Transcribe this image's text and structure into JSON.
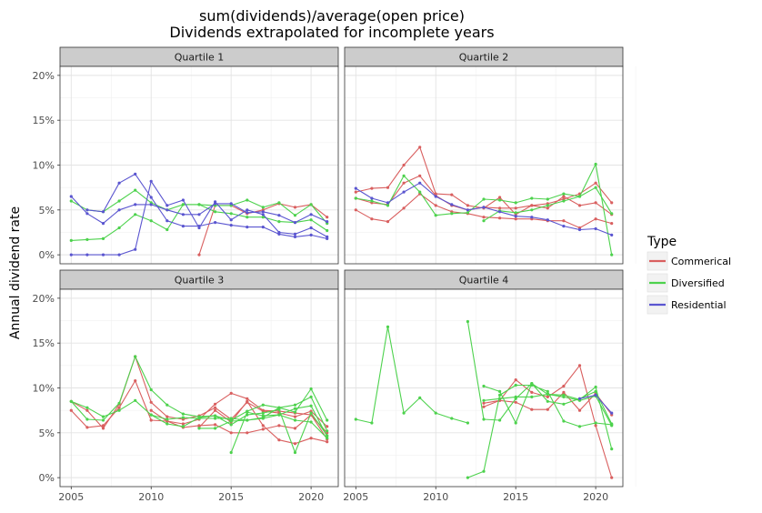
{
  "chart_data": {
    "type": "line",
    "title_lines": [
      "sum(dividends)/average(open price)",
      "Dividends extrapolated for incomplete years"
    ],
    "ylabel": "Annual dividend rate",
    "xlabel": "",
    "x_ticks": [
      2005,
      2010,
      2015,
      2020
    ],
    "y_ticks": [
      "0%",
      "5%",
      "10%",
      "15%",
      "20%"
    ],
    "y_tick_values": [
      0,
      5,
      10,
      15,
      20
    ],
    "xlim": [
      2004.3,
      2021.7
    ],
    "ylim": [
      -1.0,
      21.0
    ],
    "legend": {
      "title": "Type",
      "position": "right",
      "entries": [
        {
          "name": "Commerical",
          "color": "#d95f5f"
        },
        {
          "name": "Diversified",
          "color": "#4dd24d"
        },
        {
          "name": "Residential",
          "color": "#5a55d0"
        }
      ]
    },
    "grid": true,
    "panels": [
      {
        "label": "Quartile 1",
        "series": [
          {
            "type": "Commerical",
            "x": [
              2013,
              2014,
              2015,
              2016,
              2017,
              2018,
              2019,
              2020,
              2021
            ],
            "y": [
              0,
              5.5,
              5.5,
              4.6,
              5.0,
              5.7,
              5.3,
              5.6,
              4.2
            ]
          },
          {
            "type": "Diversified",
            "x": [
              2005,
              2006,
              2007,
              2008,
              2009,
              2010,
              2011,
              2012,
              2013,
              2014,
              2015,
              2016,
              2017,
              2018,
              2019,
              2020,
              2021
            ],
            "y": [
              6.0,
              5.0,
              4.8,
              6.0,
              7.2,
              5.8,
              5.0,
              5.6,
              5.6,
              5.5,
              5.5,
              6.1,
              5.3,
              5.8,
              4.4,
              5.6,
              3.5
            ]
          },
          {
            "type": "Diversified",
            "x": [
              2005,
              2006,
              2007,
              2008,
              2009,
              2010,
              2011,
              2012,
              2013,
              2014,
              2015,
              2016,
              2017,
              2018,
              2019,
              2020,
              2021
            ],
            "y": [
              1.6,
              1.7,
              1.8,
              3.0,
              4.5,
              3.8,
              2.8,
              5.6,
              5.6,
              4.8,
              4.6,
              4.2,
              4.2,
              3.7,
              3.6,
              3.9,
              2.7
            ]
          },
          {
            "type": "Residential",
            "x": [
              2005,
              2006,
              2007,
              2008,
              2009,
              2010,
              2011,
              2012,
              2013,
              2014,
              2015,
              2016,
              2017,
              2018,
              2019,
              2020,
              2021
            ],
            "y": [
              6.5,
              4.6,
              3.5,
              5.0,
              5.6,
              5.6,
              5.0,
              4.5,
              4.5,
              5.7,
              5.7,
              4.7,
              4.8,
              4.4,
              3.6,
              4.5,
              3.7
            ]
          },
          {
            "type": "Residential",
            "x": [
              2005,
              2006,
              2007,
              2008,
              2009,
              2010,
              2011,
              2012,
              2013,
              2014,
              2015,
              2016,
              2017,
              2018,
              2019,
              2020,
              2021
            ],
            "y": [
              0,
              0,
              0,
              0,
              0.6,
              8.2,
              5.5,
              6.1,
              3.0,
              5.9,
              3.9,
              5.0,
              4.5,
              2.5,
              2.3,
              3.0,
              2.0
            ]
          },
          {
            "type": "Residential",
            "x": [
              2006,
              2007,
              2008,
              2009,
              2010,
              2011,
              2012,
              2013,
              2014,
              2015,
              2016,
              2017,
              2018,
              2019,
              2020,
              2021
            ],
            "y": [
              5.0,
              4.8,
              8.0,
              9.0,
              6.4,
              3.8,
              3.2,
              3.2,
              3.6,
              3.3,
              3.1,
              3.1,
              2.3,
              2.0,
              2.2,
              1.8
            ]
          }
        ]
      },
      {
        "label": "Quartile 2",
        "series": [
          {
            "type": "Commerical",
            "x": [
              2005,
              2006,
              2007,
              2008,
              2009,
              2010,
              2011,
              2012,
              2013,
              2014,
              2015,
              2016,
              2017,
              2018,
              2019,
              2020,
              2021
            ],
            "y": [
              7.0,
              7.4,
              7.5,
              10.0,
              12.0,
              6.8,
              6.7,
              5.5,
              5.2,
              6.4,
              4.5,
              5.5,
              5.2,
              6.5,
              5.5,
              5.8,
              4.5
            ]
          },
          {
            "type": "Commerical",
            "x": [
              2005,
              2006,
              2007,
              2008,
              2009,
              2010,
              2011,
              2012,
              2013,
              2014,
              2015,
              2016,
              2017,
              2018,
              2019,
              2020,
              2021
            ],
            "y": [
              5.0,
              4.0,
              3.7,
              5.2,
              6.8,
              5.5,
              4.8,
              4.6,
              4.2,
              4.1,
              4.0,
              4.0,
              3.8,
              3.8,
              3.0,
              4.0,
              3.5
            ]
          },
          {
            "type": "Commerical",
            "x": [
              2005,
              2006,
              2007,
              2008,
              2009,
              2010,
              2011,
              2012,
              2013,
              2014,
              2015,
              2016,
              2017,
              2018,
              2019,
              2020,
              2021
            ],
            "y": [
              6.3,
              5.8,
              5.6,
              8.0,
              8.8,
              6.6,
              5.5,
              5.0,
              5.3,
              5.2,
              5.2,
              5.5,
              5.7,
              6.2,
              6.8,
              8.0,
              5.8
            ]
          },
          {
            "type": "Diversified",
            "x": [
              2005,
              2006,
              2007,
              2008,
              2009,
              2010,
              2011,
              2012,
              2013,
              2014,
              2015,
              2016,
              2017,
              2018,
              2019,
              2020,
              2021
            ],
            "y": [
              6.3,
              6.0,
              5.5,
              8.8,
              7.0,
              4.4,
              4.6,
              4.7,
              6.2,
              6.1,
              5.8,
              6.3,
              6.2,
              6.8,
              6.5,
              10.1,
              0
            ]
          },
          {
            "type": "Diversified",
            "x": [
              2013,
              2014,
              2015,
              2016,
              2017,
              2018,
              2019,
              2020,
              2021
            ],
            "y": [
              3.8,
              4.9,
              4.7,
              5.0,
              5.5,
              6.0,
              6.5,
              7.5,
              4.6
            ]
          },
          {
            "type": "Residential",
            "x": [
              2005,
              2006,
              2007,
              2008,
              2009,
              2010,
              2011,
              2012,
              2013,
              2014,
              2015,
              2016,
              2017,
              2018,
              2019,
              2020,
              2021
            ],
            "y": [
              7.4,
              6.3,
              5.8,
              7.0,
              8.0,
              6.5,
              5.6,
              5.0,
              5.3,
              4.8,
              4.3,
              4.2,
              3.9,
              3.2,
              2.8,
              2.9,
              2.2
            ]
          }
        ]
      },
      {
        "label": "Quartile 3",
        "series": [
          {
            "type": "Commerical",
            "x": [
              2005,
              2006,
              2007,
              2008,
              2009,
              2010,
              2011,
              2012,
              2013,
              2014,
              2015,
              2016,
              2017,
              2018,
              2019,
              2020,
              2021
            ],
            "y": [
              8.5,
              7.5,
              5.5,
              8.2,
              13.5,
              8.4,
              6.8,
              6.5,
              6.9,
              7.8,
              6.5,
              8.4,
              7.4,
              7.2,
              6.8,
              7.4,
              5.7
            ]
          },
          {
            "type": "Commerical",
            "x": [
              2005,
              2006,
              2007,
              2008,
              2009,
              2010,
              2011,
              2012,
              2013,
              2014,
              2015,
              2016,
              2017,
              2018,
              2019,
              2020,
              2021
            ],
            "y": [
              7.5,
              5.6,
              5.8,
              7.8,
              10.8,
              6.4,
              6.3,
              5.6,
              5.8,
              5.9,
              5.0,
              5.0,
              5.4,
              5.8,
              5.5,
              7.0,
              4.3
            ]
          },
          {
            "type": "Commerical",
            "x": [
              2010,
              2011,
              2012,
              2013,
              2014,
              2015,
              2016,
              2017,
              2018,
              2019,
              2020,
              2021
            ],
            "y": [
              7.5,
              6.3,
              6.0,
              6.5,
              8.2,
              9.4,
              8.8,
              7.5,
              7.4,
              7.2,
              7.0,
              5.0
            ]
          },
          {
            "type": "Commerical",
            "x": [
              2013,
              2014,
              2015,
              2016,
              2017,
              2018,
              2019,
              2020,
              2021
            ],
            "y": [
              5.6,
              7.5,
              6.2,
              8.5,
              5.8,
              4.2,
              3.8,
              4.4,
              4.0
            ]
          },
          {
            "type": "Diversified",
            "x": [
              2005,
              2006,
              2007,
              2008,
              2009,
              2010,
              2011,
              2012,
              2013,
              2014,
              2015,
              2016,
              2017,
              2018,
              2019,
              2020,
              2021
            ],
            "y": [
              8.5,
              7.8,
              6.8,
              7.5,
              8.6,
              7.0,
              6.5,
              6.7,
              6.6,
              6.6,
              6.6,
              6.4,
              6.7,
              7.8,
              7.3,
              9.9,
              6.4
            ]
          },
          {
            "type": "Diversified",
            "x": [
              2005,
              2006,
              2007,
              2008,
              2009,
              2010,
              2011,
              2012,
              2013,
              2014,
              2015,
              2016,
              2017,
              2018,
              2019,
              2020,
              2021
            ],
            "y": [
              8.5,
              6.5,
              6.4,
              8.3,
              13.5,
              9.8,
              8.1,
              7.1,
              6.8,
              6.9,
              6.4,
              7.4,
              8.1,
              7.8,
              8.1,
              9.0,
              5.2
            ]
          },
          {
            "type": "Diversified",
            "x": [
              2010,
              2011,
              2012,
              2013,
              2014,
              2015,
              2016,
              2017,
              2018,
              2019,
              2020,
              2021
            ],
            "y": [
              7.0,
              6.0,
              5.7,
              6.7,
              6.9,
              5.9,
              7.0,
              7.2,
              7.6,
              2.8,
              7.2,
              4.7
            ]
          },
          {
            "type": "Diversified",
            "x": [
              2015,
              2016,
              2017,
              2018,
              2019,
              2020,
              2021
            ],
            "y": [
              2.8,
              7.3,
              6.9,
              7.0,
              7.7,
              8.0,
              4.6
            ]
          },
          {
            "type": "Diversified",
            "x": [
              2013,
              2014,
              2015,
              2016,
              2017,
              2018,
              2019,
              2020,
              2021
            ],
            "y": [
              5.5,
              5.5,
              6.3,
              6.4,
              6.6,
              7.0,
              6.4,
              6.2,
              4.4
            ]
          }
        ]
      },
      {
        "label": "Quartile 4",
        "series": [
          {
            "type": "Commerical",
            "x": [
              2013,
              2014,
              2015,
              2016,
              2017,
              2018,
              2019,
              2020,
              2021
            ],
            "y": [
              8.3,
              8.6,
              10.9,
              9.5,
              9.0,
              10.2,
              12.5,
              5.8,
              0
            ]
          },
          {
            "type": "Commerical",
            "x": [
              2013,
              2014,
              2015,
              2016,
              2017,
              2018,
              2019,
              2020,
              2021
            ],
            "y": [
              7.9,
              8.6,
              8.4,
              7.6,
              7.6,
              9.5,
              7.5,
              9.4,
              7.0
            ]
          },
          {
            "type": "Diversified",
            "x": [
              2005,
              2006,
              2007,
              2008,
              2009,
              2010,
              2011,
              2012
            ],
            "y": [
              6.5,
              6.1,
              16.8,
              7.2,
              8.9,
              7.2,
              6.6,
              6.1
            ]
          },
          {
            "type": "Diversified",
            "x": [
              2012,
              2013,
              2014,
              2015,
              2016,
              2017,
              2018,
              2019,
              2020,
              2021
            ],
            "y": [
              17.4,
              6.5,
              6.4,
              8.8,
              10.5,
              9.3,
              9.2,
              8.7,
              10.1,
              3.2
            ]
          },
          {
            "type": "Diversified",
            "x": [
              2012,
              2013,
              2014,
              2015,
              2016,
              2017,
              2018,
              2019,
              2020,
              2021
            ],
            "y": [
              0,
              0.7,
              9.2,
              10.3,
              10.3,
              9.6,
              6.3,
              5.7,
              6.1,
              5.9
            ]
          },
          {
            "type": "Diversified",
            "x": [
              2013,
              2014,
              2015,
              2016,
              2017,
              2018,
              2019,
              2020,
              2021
            ],
            "y": [
              10.2,
              9.6,
              6.1,
              10.5,
              8.5,
              8.2,
              8.8,
              9.6,
              6.0
            ]
          },
          {
            "type": "Diversified",
            "x": [
              2013,
              2014,
              2015,
              2016,
              2017,
              2018,
              2019,
              2020,
              2021
            ],
            "y": [
              8.6,
              8.8,
              9.0,
              9.0,
              9.3,
              9.0,
              8.6,
              9.1,
              5.8
            ]
          },
          {
            "type": "Residential",
            "x": [
              2019,
              2020,
              2021
            ],
            "y": [
              8.8,
              9.2,
              7.2
            ]
          }
        ]
      }
    ]
  }
}
